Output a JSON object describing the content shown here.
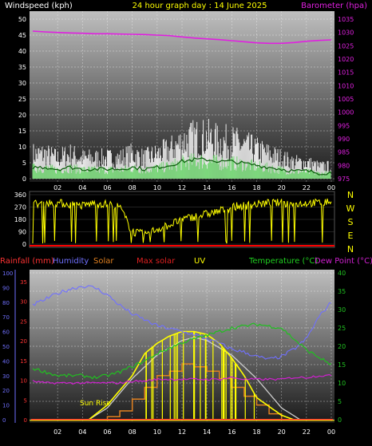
{
  "header": {
    "left_label": "Windspeed (kph)",
    "center_label": "24 hour graph day : 14 June 2025",
    "right_label": "Barometer (hpa)"
  },
  "colors": {
    "background": "#000000",
    "wind_avg": "#ffffff",
    "wind_gust": "#5ad25a",
    "barometer": "#e020e0",
    "direction": "#ffff00",
    "rain": "#ff3333",
    "humidity": "#7070ff",
    "solar": "#e08020",
    "max_solar": "#cccccc",
    "uv": "#ffff00",
    "temperature": "#20c020",
    "dew_point": "#d020d0"
  },
  "compass_letters": [
    "N",
    "W",
    "S",
    "E",
    "N"
  ],
  "bottom_header": {
    "rainfall": "Rainfall (mm)",
    "humidity": "Humidity",
    "solar": "Solar",
    "max_solar": "Max solar",
    "uv": "UV",
    "temperature": "Temperature (°C)",
    "dew_point": "Dew Point (°C)"
  },
  "annotations": {
    "sun_rise": "Sun Rise"
  },
  "chart_data": [
    {
      "type": "line",
      "panel": "wind",
      "x_ticks": [
        "02",
        "04",
        "06",
        "08",
        "10",
        "12",
        "14",
        "16",
        "18",
        "20",
        "22",
        "00"
      ],
      "y_left_ticks": [
        "0",
        "5",
        "10",
        "15",
        "20",
        "25",
        "30",
        "35",
        "40",
        "45",
        "50"
      ],
      "y_left_range": [
        0,
        50
      ],
      "y_right_ticks": [
        "975",
        "980",
        "985",
        "990",
        "995",
        "1000",
        "1005",
        "1010",
        "1015",
        "1020",
        "1025",
        "1030",
        "1035"
      ],
      "y_right_range": [
        975,
        1035
      ],
      "grid": true,
      "series": [
        {
          "name": "Barometer (hpa)",
          "axis": "right",
          "x": [
            0,
            1,
            2,
            3,
            4,
            5,
            6,
            7,
            8,
            9,
            10,
            11,
            12,
            13,
            14,
            15,
            16,
            17,
            18,
            19,
            20,
            21,
            22,
            23,
            24
          ],
          "values": [
            1030.5,
            1030.2,
            1030,
            1029.8,
            1029.7,
            1029.5,
            1029.5,
            1029.4,
            1029.3,
            1029.2,
            1029,
            1028.8,
            1028.3,
            1027.9,
            1027.6,
            1027.3,
            1026.9,
            1026.5,
            1026.1,
            1025.9,
            1025.9,
            1026.2,
            1026.7,
            1027,
            1027.2
          ]
        },
        {
          "name": "Windspeed (kph)",
          "axis": "left",
          "x": [
            0,
            1,
            2,
            3,
            4,
            5,
            6,
            7,
            8,
            9,
            10,
            11,
            12,
            13,
            14,
            15,
            16,
            17,
            18,
            19,
            20,
            21,
            22,
            23,
            24
          ],
          "values": [
            6,
            6,
            5,
            6,
            5,
            5,
            5,
            5,
            6,
            5,
            6,
            7,
            9,
            10,
            10,
            9,
            9,
            8,
            7,
            6,
            5,
            4,
            4,
            3,
            3
          ]
        }
      ]
    },
    {
      "type": "scatter",
      "panel": "wind-direction",
      "y_ticks": [
        "0",
        "90",
        "180",
        "270",
        "360"
      ],
      "y_range": [
        0,
        360
      ],
      "series": [
        {
          "name": "Direction",
          "x": [
            0,
            1,
            2,
            3,
            4,
            5,
            6,
            7,
            8,
            9,
            10,
            11,
            12,
            13,
            14,
            15,
            16,
            17,
            18,
            19,
            20,
            21,
            22,
            23,
            24
          ],
          "values": [
            290,
            300,
            300,
            290,
            280,
            300,
            290,
            270,
            90,
            70,
            110,
            140,
            180,
            200,
            220,
            240,
            270,
            280,
            290,
            300,
            300,
            290,
            300,
            300,
            310
          ]
        }
      ]
    },
    {
      "type": "line",
      "panel": "solar",
      "x_ticks": [
        "02",
        "04",
        "06",
        "08",
        "10",
        "12",
        "14",
        "16",
        "18",
        "20",
        "22",
        "00"
      ],
      "y_hum_ticks": [
        "0",
        "10",
        "20",
        "30",
        "40",
        "50",
        "60",
        "70",
        "80",
        "90",
        "100"
      ],
      "y_hum_range": [
        0,
        100
      ],
      "y_rain_ticks": [
        "0",
        "5",
        "10",
        "15",
        "20",
        "25",
        "30",
        "35"
      ],
      "y_rain_range": [
        0,
        35
      ],
      "y_temp_ticks": [
        "0",
        "5",
        "10",
        "15",
        "20",
        "25",
        "30",
        "35",
        "40"
      ],
      "y_temp_range": [
        0,
        40
      ],
      "grid": true,
      "series": [
        {
          "name": "Humidity",
          "axis": "hum",
          "x": [
            0,
            1,
            2,
            3,
            4,
            5,
            6,
            7,
            8,
            9,
            10,
            11,
            12,
            13,
            14,
            15,
            16,
            17,
            18,
            19,
            20,
            21,
            22,
            23,
            24
          ],
          "values": [
            78,
            82,
            86,
            89,
            91,
            90,
            85,
            78,
            72,
            68,
            64,
            62,
            60,
            58,
            55,
            52,
            48,
            46,
            43,
            41,
            43,
            48,
            55,
            70,
            80
          ]
        },
        {
          "name": "Temperature (°C)",
          "axis": "temp",
          "x": [
            0,
            1,
            2,
            3,
            4,
            5,
            6,
            7,
            8,
            9,
            10,
            11,
            12,
            13,
            14,
            15,
            16,
            17,
            18,
            19,
            20,
            21,
            22,
            23,
            24
          ],
          "values": [
            14,
            13,
            12,
            12,
            12,
            11.5,
            12,
            13,
            14.5,
            16,
            18,
            19.5,
            21,
            22,
            23,
            24,
            25,
            25.5,
            26,
            25.5,
            25,
            22,
            19,
            17,
            15
          ]
        },
        {
          "name": "Dew Point (°C)",
          "axis": "temp",
          "x": [
            0,
            1,
            2,
            3,
            4,
            5,
            6,
            7,
            8,
            9,
            10,
            11,
            12,
            13,
            14,
            15,
            16,
            17,
            18,
            19,
            20,
            21,
            22,
            23,
            24
          ],
          "values": [
            10.5,
            10,
            10,
            10,
            10,
            10,
            10,
            10,
            10.5,
            10.5,
            11,
            11,
            11,
            11,
            11,
            11,
            11.5,
            11,
            11,
            11,
            11,
            11.5,
            11.5,
            12,
            12
          ]
        },
        {
          "name": "Max solar",
          "axis": "solar",
          "x": [
            4.5,
            6,
            8,
            10,
            12,
            13,
            14,
            16,
            18,
            20,
            21.5
          ],
          "values": [
            0,
            8,
            28,
            44,
            54,
            56,
            54,
            44,
            28,
            8,
            0
          ]
        },
        {
          "name": "UV",
          "axis": "solar",
          "x": [
            4.5,
            6,
            8,
            9,
            10,
            11,
            12,
            13,
            14,
            15,
            16,
            17,
            18,
            20,
            21
          ],
          "values": [
            0,
            10,
            30,
            45,
            52,
            57,
            60,
            60,
            58,
            52,
            42,
            30,
            15,
            3,
            0
          ]
        },
        {
          "name": "Solar",
          "axis": "solar",
          "x": [
            6,
            7,
            8,
            9,
            10,
            11,
            12,
            13,
            14,
            15,
            16,
            17,
            18,
            19,
            20
          ],
          "values": [
            2,
            6,
            14,
            22,
            30,
            33,
            38,
            36,
            33,
            28,
            22,
            16,
            10,
            4,
            0
          ]
        },
        {
          "name": "Rainfall (mm)",
          "axis": "rain",
          "x": [
            0,
            6,
            12,
            18,
            24
          ],
          "values": [
            0,
            0,
            0,
            0,
            0
          ]
        }
      ]
    }
  ]
}
